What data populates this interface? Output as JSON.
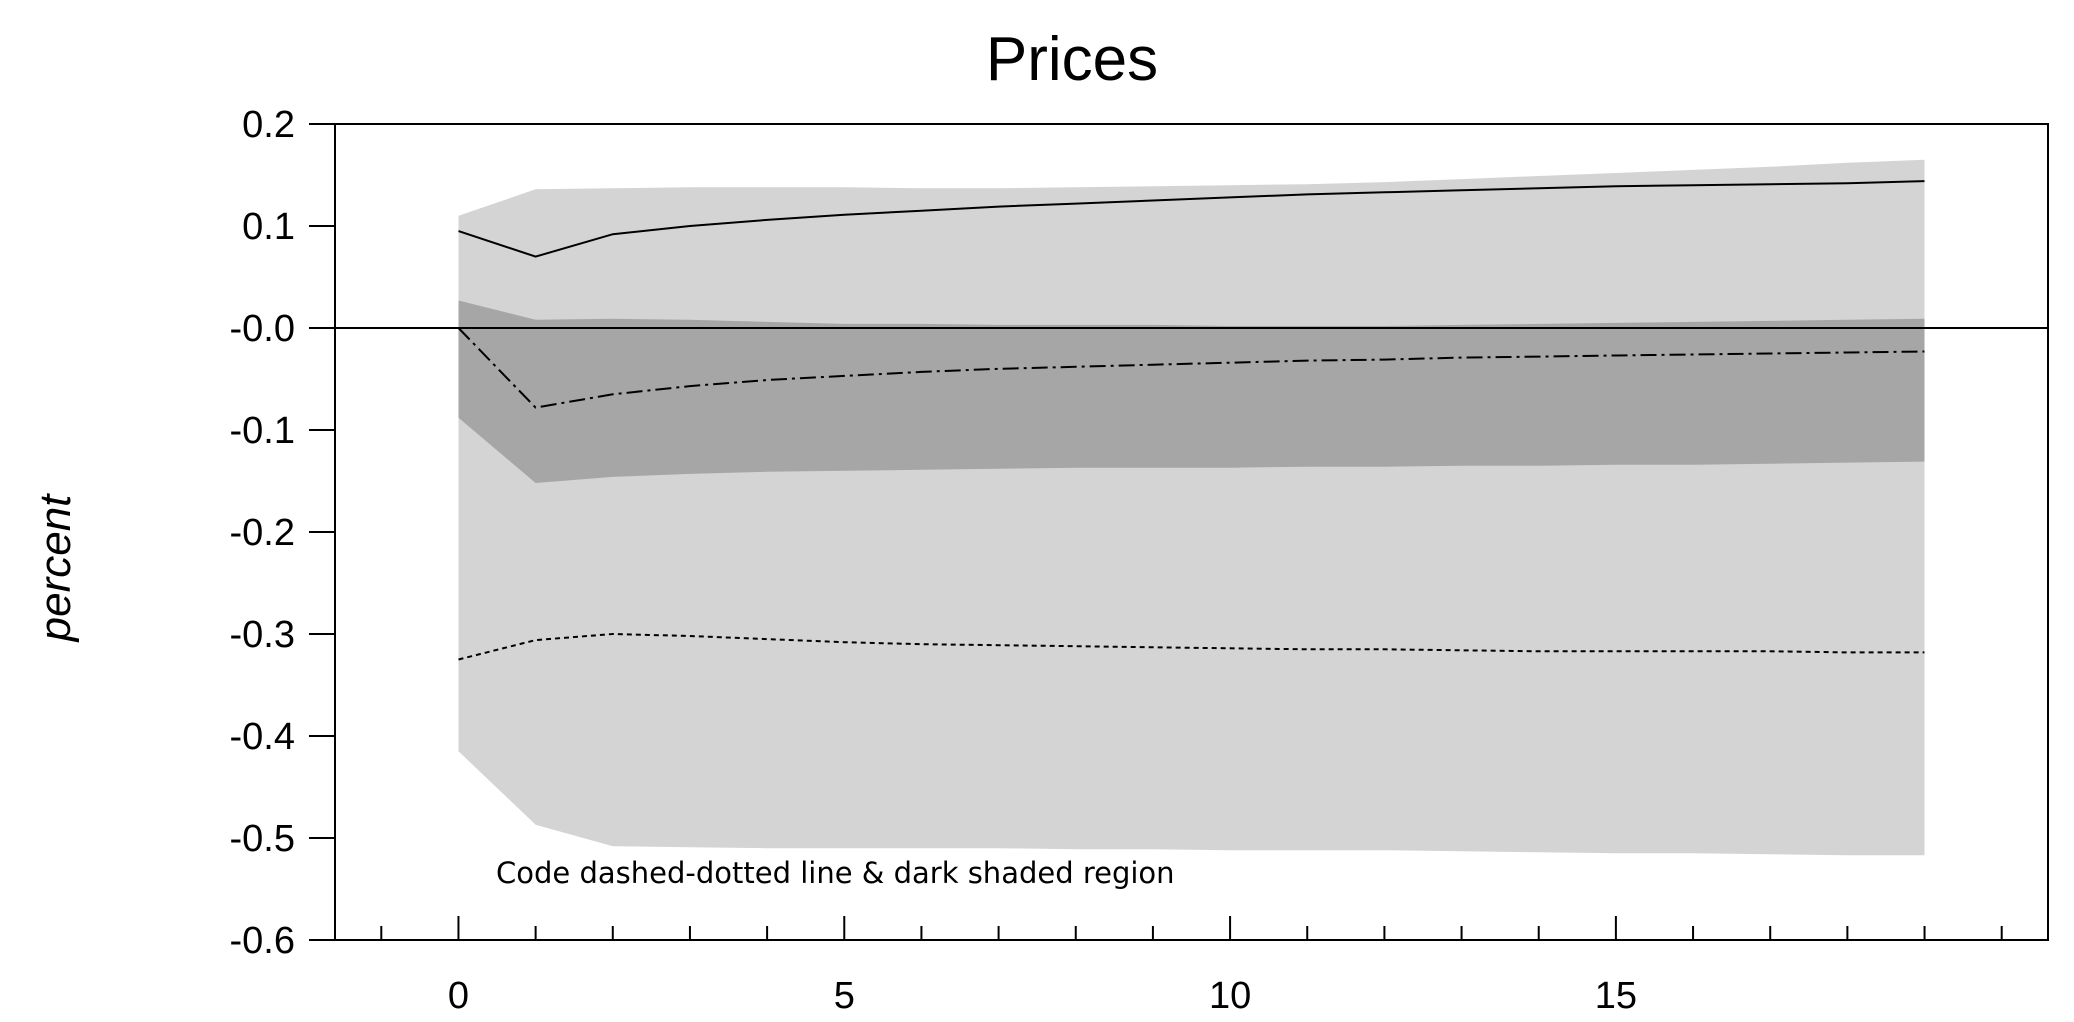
{
  "chart_data": {
    "type": "line",
    "title": "Prices",
    "xlabel": "",
    "ylabel": "percent",
    "annotation": "Code dashed-dotted line & dark shaded region",
    "xlim": [
      -1.6,
      20.6
    ],
    "ylim": [
      -0.6,
      0.2
    ],
    "xticks": [
      0,
      5,
      10,
      15
    ],
    "xtick_labels": [
      "0",
      "5",
      "10",
      "15"
    ],
    "yticks": [
      0.2,
      0.1,
      0.0,
      -0.1,
      -0.2,
      -0.3,
      -0.4,
      -0.5,
      -0.6
    ],
    "ytick_labels": [
      "0.2",
      "0.1",
      "-0.0",
      "-0.1",
      "-0.2",
      "-0.3",
      "-0.4",
      "-0.5",
      "-0.6"
    ],
    "x": [
      0,
      1,
      2,
      3,
      4,
      5,
      6,
      7,
      8,
      9,
      10,
      11,
      12,
      13,
      14,
      15,
      16,
      17,
      18,
      19
    ],
    "bands": [
      {
        "style": "light",
        "color": "#d4d4d4",
        "upper": [
          0.11,
          0.136,
          0.137,
          0.138,
          0.138,
          0.138,
          0.137,
          0.137,
          0.138,
          0.139,
          0.14,
          0.141,
          0.143,
          0.146,
          0.149,
          0.152,
          0.155,
          0.158,
          0.162,
          0.165
        ],
        "lower": [
          -0.415,
          -0.487,
          -0.508,
          -0.509,
          -0.51,
          -0.51,
          -0.51,
          -0.51,
          -0.511,
          -0.511,
          -0.512,
          -0.512,
          -0.512,
          -0.513,
          -0.514,
          -0.515,
          -0.515,
          -0.516,
          -0.517,
          -0.517
        ]
      },
      {
        "style": "dark",
        "color": "#a6a6a6",
        "upper": [
          0.027,
          0.008,
          0.009,
          0.008,
          0.006,
          0.004,
          0.004,
          0.003,
          0.003,
          0.003,
          0.002,
          0.002,
          0.002,
          0.003,
          0.004,
          0.005,
          0.006,
          0.007,
          0.008,
          0.009
        ],
        "lower": [
          -0.088,
          -0.152,
          -0.146,
          -0.143,
          -0.141,
          -0.14,
          -0.139,
          -0.138,
          -0.137,
          -0.137,
          -0.137,
          -0.136,
          -0.136,
          -0.135,
          -0.135,
          -0.134,
          -0.134,
          -0.133,
          -0.132,
          -0.131
        ]
      }
    ],
    "series": [
      {
        "style": "solid",
        "values": [
          0.095,
          0.07,
          0.092,
          0.1,
          0.106,
          0.111,
          0.115,
          0.119,
          0.122,
          0.125,
          0.128,
          0.131,
          0.133,
          0.135,
          0.137,
          0.139,
          0.14,
          0.141,
          0.142,
          0.144
        ]
      },
      {
        "style": "dashdot",
        "values": [
          0.0,
          -0.078,
          -0.065,
          -0.057,
          -0.051,
          -0.047,
          -0.043,
          -0.04,
          -0.038,
          -0.036,
          -0.034,
          -0.032,
          -0.031,
          -0.029,
          -0.028,
          -0.027,
          -0.026,
          -0.025,
          -0.024,
          -0.023
        ]
      },
      {
        "style": "dotted",
        "values": [
          -0.325,
          -0.306,
          -0.3,
          -0.302,
          -0.305,
          -0.308,
          -0.31,
          -0.311,
          -0.312,
          -0.313,
          -0.314,
          -0.315,
          -0.315,
          -0.316,
          -0.317,
          -0.317,
          -0.317,
          -0.317,
          -0.318,
          -0.318
        ]
      }
    ],
    "zero_line": true,
    "grid": false,
    "legend": "none"
  }
}
